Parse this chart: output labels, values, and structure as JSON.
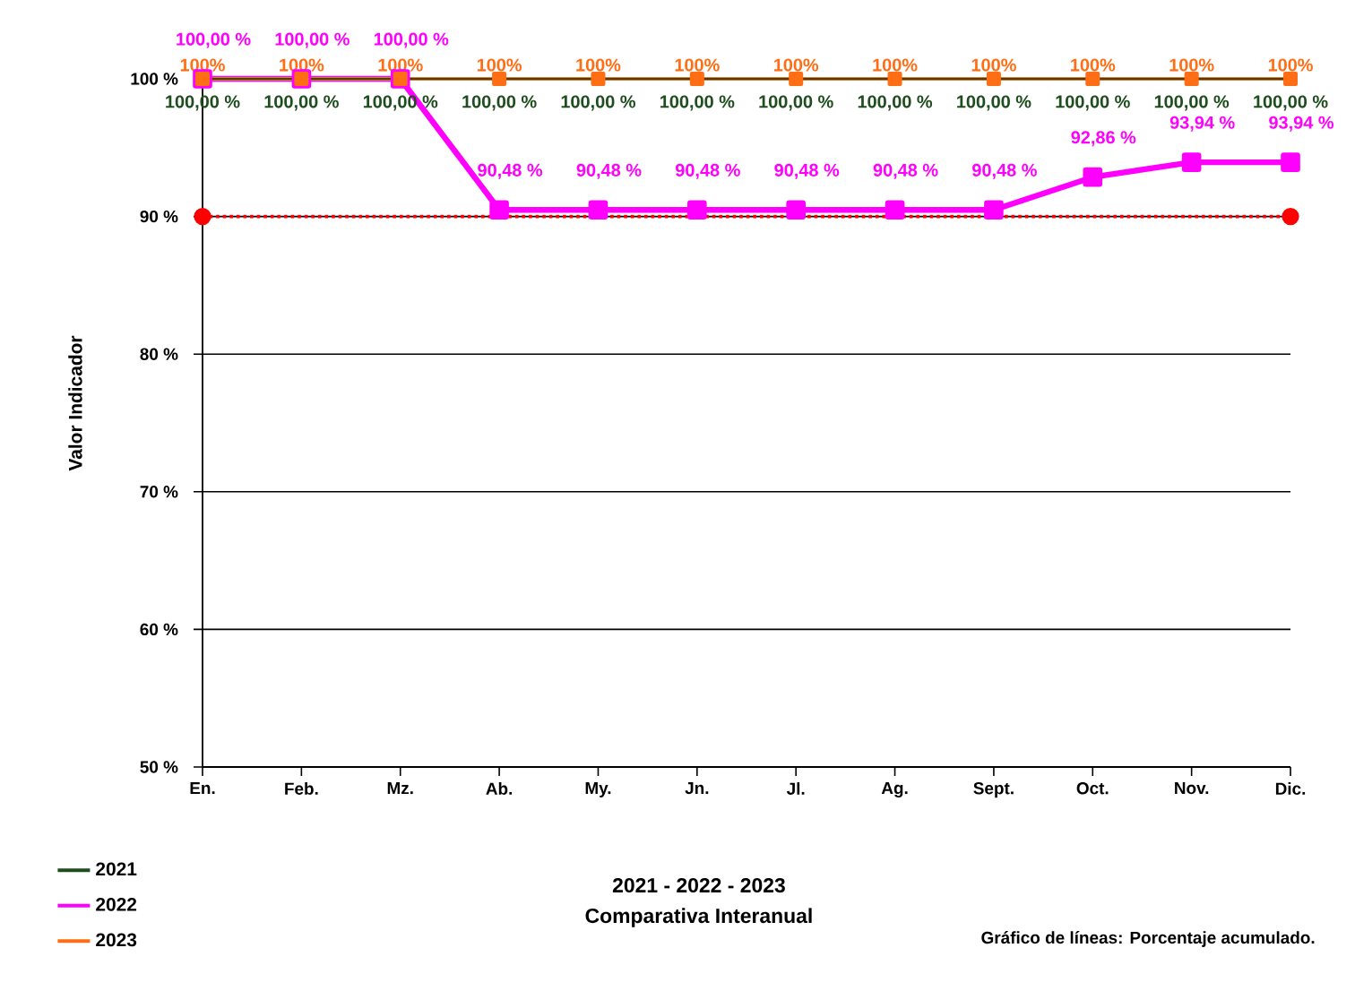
{
  "chart_data": {
    "type": "line",
    "title": "2021 - 2022 - 2023",
    "subtitle": "Comparativa Interanual",
    "ylabel": "Valor Indicador",
    "annotations": [
      "Gráfico de líneas: Porcentaje acumulado."
    ],
    "categories": [
      "En.",
      "Feb.",
      "Mz.",
      "Ab.",
      "My.",
      "Jn.",
      "Jl.",
      "Ag.",
      "Sept.",
      "Oct.",
      "Nov.",
      "Dic."
    ],
    "series": [
      {
        "name": "2021",
        "color": "#1e4d1e",
        "values": [
          100,
          100,
          100,
          100,
          100,
          100,
          100,
          100,
          100,
          100,
          100,
          100
        ],
        "value_labels": [
          "100,00 %",
          "100,00 %",
          "100,00 %",
          "100,00 %",
          "100,00 %",
          "100,00 %",
          "100,00 %",
          "100,00 %",
          "100,00 %",
          "100,00 %",
          "100,00 %",
          "100,00 %"
        ]
      },
      {
        "name": "2022",
        "color": "#ff00ff",
        "marker": "square",
        "values": [
          100,
          100,
          100,
          90.48,
          90.48,
          90.48,
          90.48,
          90.48,
          90.48,
          92.86,
          93.94,
          93.94
        ],
        "value_labels": [
          "100,00 %",
          "100,00 %",
          "100,00 %",
          "90,48 %",
          "90,48 %",
          "90,48 %",
          "90,48 %",
          "90,48 %",
          "90,48 %",
          "92,86 %",
          "93,94 %",
          "93,94 %"
        ]
      },
      {
        "name": "2023",
        "color": "#ff6d14",
        "marker": "square",
        "values": [
          100,
          100,
          100,
          100,
          100,
          100,
          100,
          100,
          100,
          100,
          100,
          100
        ],
        "value_labels": [
          "100%",
          "100%",
          "100%",
          "100%",
          "100%",
          "100%",
          "100%",
          "100%",
          "100%",
          "100%",
          "100%",
          "100%"
        ]
      },
      {
        "type": "scatter",
        "color": "#ff0000",
        "marker": "circle",
        "x": [
          "En.",
          "Dic."
        ],
        "values": [
          90,
          90
        ]
      }
    ],
    "ylim": [
      50,
      100
    ],
    "yticks": [
      {
        "value": 50,
        "label": "50 %"
      },
      {
        "value": 60,
        "label": "60 %"
      },
      {
        "value": 70,
        "label": "70 %"
      },
      {
        "value": 80,
        "label": "80 %"
      },
      {
        "value": 90,
        "label": "90 %"
      },
      {
        "value": 100,
        "label": "100 %"
      }
    ],
    "grid": "y",
    "legend": "bottom left",
    "ref_lines": [
      {
        "axis": "y",
        "value": 90,
        "color": "#ff0000",
        "line_style": "dotted"
      }
    ]
  }
}
